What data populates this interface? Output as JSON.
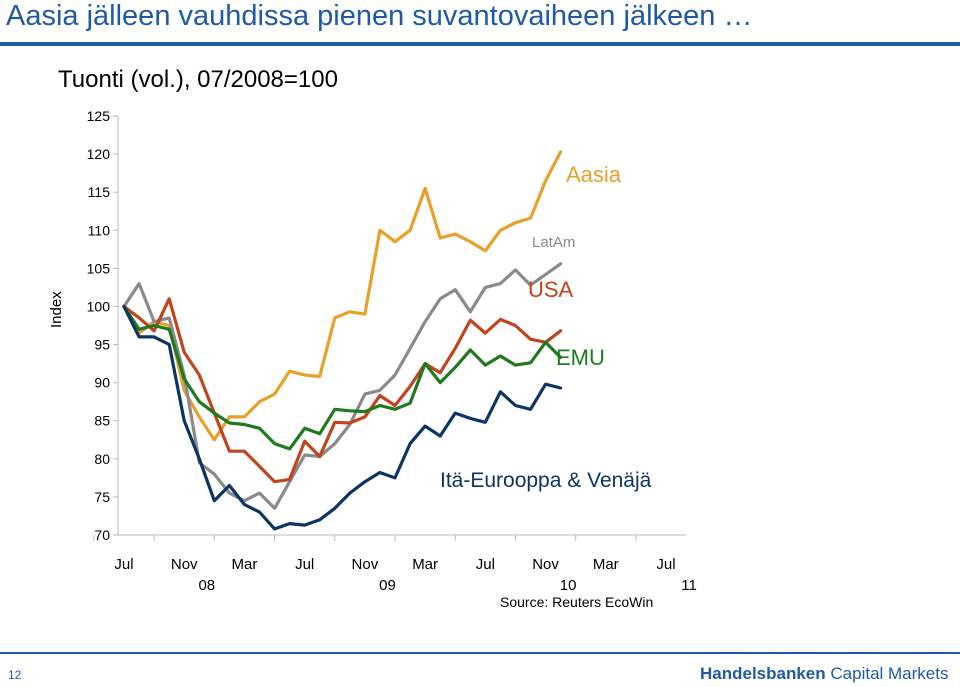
{
  "slide": {
    "title": "Aasia jälleen vauhdissa pienen suvantovaiheen jälkeen …",
    "page_number": "12",
    "logo_brand": "Handelsbanken",
    "logo_suffix": " Capital Markets"
  },
  "chart_data": {
    "type": "line",
    "title": "Tuonti (vol.), 07/2008=100",
    "ylabel": "Index",
    "xlabel": "",
    "ylim": [
      70,
      125
    ],
    "yticks": [
      70,
      75,
      80,
      85,
      90,
      95,
      100,
      105,
      110,
      115,
      120,
      125
    ],
    "x": [
      "2008-07",
      "2008-08",
      "2008-09",
      "2008-10",
      "2008-11",
      "2008-12",
      "2009-01",
      "2009-02",
      "2009-03",
      "2009-04",
      "2009-05",
      "2009-06",
      "2009-07",
      "2009-08",
      "2009-09",
      "2009-10",
      "2009-11",
      "2009-12",
      "2010-01",
      "2010-02",
      "2010-03",
      "2010-04",
      "2010-05",
      "2010-06",
      "2010-07",
      "2010-08",
      "2010-09",
      "2010-10",
      "2010-11",
      "2010-12",
      "2011-01",
      "2011-02",
      "2011-03",
      "2011-04",
      "2011-05",
      "2011-06",
      "2011-07"
    ],
    "month_labels": [
      "Jul",
      "Nov",
      "Mar",
      "Jul",
      "Nov",
      "Mar",
      "Jul",
      "Nov",
      "Mar",
      "Jul"
    ],
    "year_labels": [
      "08",
      "09",
      "10",
      "11"
    ],
    "source": "Source: Reuters EcoWin",
    "series": [
      {
        "name": "Aasia",
        "color": "#e8a02a",
        "values": [
          100,
          96.5,
          98,
          97.5,
          89,
          85.5,
          82.5,
          85.5,
          85.5,
          87.5,
          88.5,
          91.5,
          91,
          90.8,
          98.5,
          99.3,
          99,
          110,
          108.5,
          110,
          115.5,
          109,
          109.5,
          108.5,
          107.3,
          110,
          111,
          111.6,
          116.5,
          120.3,
          null,
          null,
          null,
          null,
          null,
          null,
          null
        ]
      },
      {
        "name": "LatAm",
        "color": "#8a8a8a",
        "values": [
          100,
          103,
          98,
          98.5,
          91,
          79.5,
          78,
          75.5,
          74.5,
          75.5,
          73.5,
          77,
          80.5,
          80.3,
          82,
          84.5,
          88.5,
          89,
          91,
          94.5,
          98,
          101,
          102.2,
          99.3,
          102.5,
          103,
          104.8,
          102.8,
          104.2,
          105.6,
          null,
          null,
          null,
          null,
          null,
          null,
          null
        ]
      },
      {
        "name": "USA",
        "color": "#c0451e",
        "values": [
          100,
          98.5,
          96.8,
          101,
          94,
          91,
          86,
          81,
          81,
          79,
          77,
          77.3,
          82.3,
          80.3,
          84.8,
          84.7,
          85.5,
          88.3,
          87,
          89.5,
          92.5,
          91.3,
          94.5,
          98.2,
          96.5,
          98.3,
          97.5,
          95.7,
          95.3,
          96.8,
          null,
          null,
          null,
          null,
          null,
          null,
          null
        ]
      },
      {
        "name": "EMU",
        "color": "#1f7a1f",
        "values": [
          100,
          97,
          97.5,
          97,
          90.5,
          87.5,
          86,
          84.7,
          84.5,
          84,
          82,
          81.3,
          84,
          83.3,
          86.5,
          86.3,
          86.2,
          87,
          86.5,
          87.3,
          92.5,
          90,
          92,
          94.3,
          92.3,
          93.5,
          92.3,
          92.6,
          95.3,
          93.3,
          null,
          null,
          null,
          null,
          null,
          null,
          null
        ]
      },
      {
        "name": "Itä-Eurooppa & Venäjä",
        "color": "#0d3564",
        "values": [
          100,
          96,
          96,
          95,
          85,
          80,
          74.5,
          76.5,
          74,
          73,
          70.8,
          71.5,
          71.3,
          72,
          73.5,
          75.5,
          77,
          78.2,
          77.5,
          82,
          84.3,
          83,
          86,
          85.3,
          84.8,
          88.8,
          87,
          86.5,
          89.8,
          89.3,
          null,
          null,
          null,
          null,
          null,
          null,
          null
        ]
      }
    ],
    "legend": "inline labels at line ends",
    "grid": false
  }
}
